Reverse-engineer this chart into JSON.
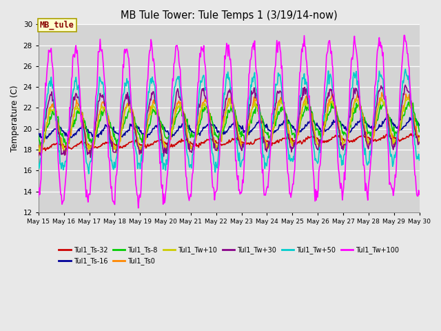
{
  "title": "MB Tule Tower: Tule Temps 1 (3/19/14-now)",
  "ylabel": "Temperature (C)",
  "ylim": [
    12,
    30
  ],
  "yticks": [
    12,
    14,
    16,
    18,
    20,
    22,
    24,
    26,
    28,
    30
  ],
  "fig_bg": "#e8e8e8",
  "plot_bg": "#d4d4d4",
  "series": [
    {
      "label": "Tul1_Ts-32",
      "color": "#cc0000",
      "lw": 1.2
    },
    {
      "label": "Tul1_Ts-16",
      "color": "#000099",
      "lw": 1.2
    },
    {
      "label": "Tul1_Ts-8",
      "color": "#00cc00",
      "lw": 1.2
    },
    {
      "label": "Tul1_Ts0",
      "color": "#ff8800",
      "lw": 1.2
    },
    {
      "label": "Tul1_Tw+10",
      "color": "#cccc00",
      "lw": 1.2
    },
    {
      "label": "Tul1_Tw+30",
      "color": "#880088",
      "lw": 1.2
    },
    {
      "label": "Tul1_Tw+50",
      "color": "#00cccc",
      "lw": 1.2
    },
    {
      "label": "Tul1_Tw+100",
      "color": "#ff00ff",
      "lw": 1.2
    }
  ],
  "annotation_text": "MB_tule",
  "annotation_color": "#880000",
  "annotation_bg": "#ffffcc",
  "annotation_border": "#aaa000"
}
